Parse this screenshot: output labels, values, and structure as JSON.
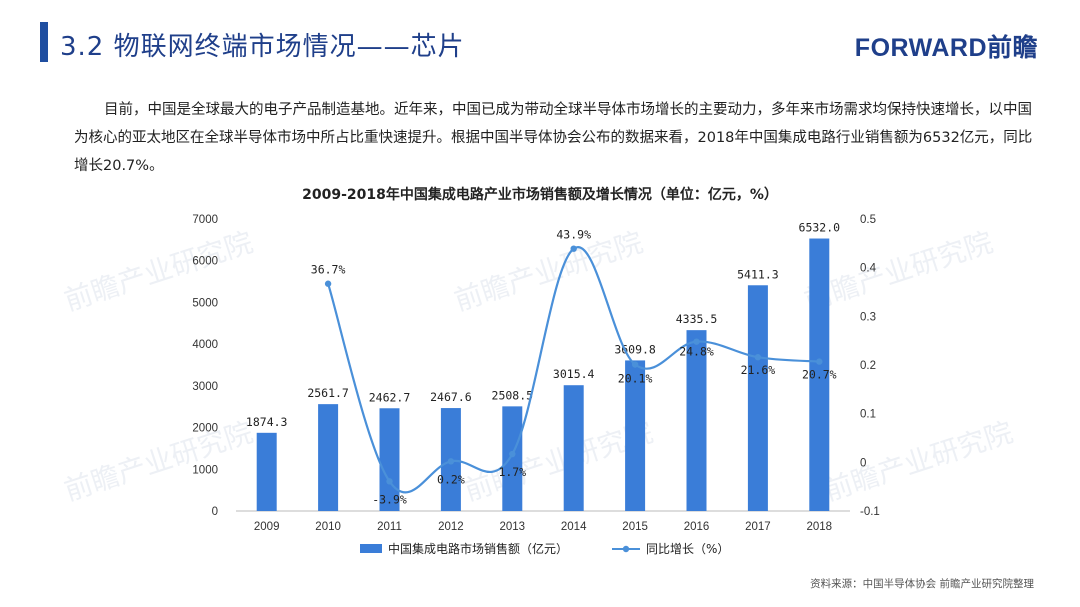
{
  "header": {
    "title": "3.2 物联网终端市场情况——芯片",
    "logo_text": "FORWARD前瞻"
  },
  "body_text": "目前，中国是全球最大的电子产品制造基地。近年来，中国已成为带动全球半导体市场增长的主要动力，多年来市场需求均保持快速增长，以中国为核心的亚太地区在全球半导体市场中所占比重快速提升。根据中国半导体协会公布的数据来看，2018年中国集成电路行业销售额为6532亿元，同比增长20.7%。",
  "watermark": "前瞻产业研究院",
  "source": "资料来源：中国半导体协会  前瞻产业研究院整理",
  "colors": {
    "bar": "#3a7dd8",
    "line": "#4a90d9",
    "title": "#1f3f8a"
  },
  "chart_data": {
    "type": "bar+line",
    "title": "2009-2018年中国集成电路产业市场销售额及增长情况（单位：亿元，%）",
    "categories": [
      "2009",
      "2010",
      "2011",
      "2012",
      "2013",
      "2014",
      "2015",
      "2016",
      "2017",
      "2018"
    ],
    "series": [
      {
        "name": "中国集成电路市场销售额（亿元）",
        "type": "bar",
        "axis": "left",
        "values": [
          1874.3,
          2561.7,
          2462.7,
          2467.6,
          2508.5,
          3015.4,
          3609.8,
          4335.5,
          5411.3,
          6532.0
        ],
        "labels": [
          "1874.3",
          "2561.7",
          "2462.7",
          "2467.6",
          "2508.5",
          "3015.4",
          "3609.8",
          "4335.5",
          "5411.3",
          "6532.0"
        ]
      },
      {
        "name": "同比增长（%）",
        "type": "line",
        "axis": "right",
        "values": [
          null,
          0.367,
          -0.039,
          0.002,
          0.017,
          0.439,
          0.201,
          0.248,
          0.216,
          0.207
        ],
        "labels": [
          "",
          "36.7%",
          "-3.9%",
          "0.2%",
          "1.7%",
          "43.9%",
          "20.1%",
          "24.8%",
          "21.6%",
          "20.7%"
        ]
      }
    ],
    "y_left": {
      "min": 0,
      "max": 7000,
      "ticks": [
        "0",
        "1000",
        "2000",
        "3000",
        "4000",
        "5000",
        "6000",
        "7000"
      ]
    },
    "y_right": {
      "min": -0.1,
      "max": 0.5,
      "ticks": [
        "-0.1",
        "0",
        "0.1",
        "0.2",
        "0.3",
        "0.4",
        "0.5"
      ]
    },
    "grid": false,
    "legend": "bottom"
  }
}
